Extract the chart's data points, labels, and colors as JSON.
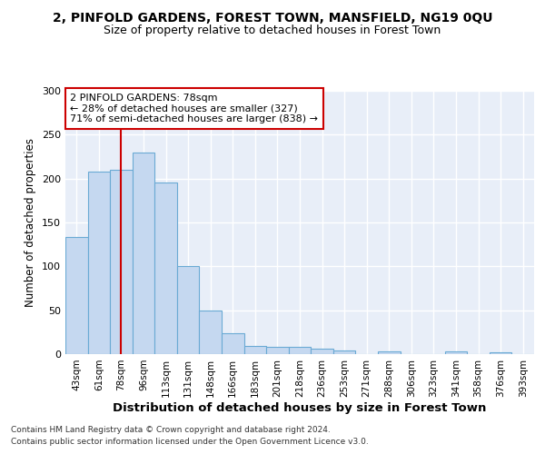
{
  "title1": "2, PINFOLD GARDENS, FOREST TOWN, MANSFIELD, NG19 0QU",
  "title2": "Size of property relative to detached houses in Forest Town",
  "xlabel": "Distribution of detached houses by size in Forest Town",
  "ylabel": "Number of detached properties",
  "categories": [
    "43sqm",
    "61sqm",
    "78sqm",
    "96sqm",
    "113sqm",
    "131sqm",
    "148sqm",
    "166sqm",
    "183sqm",
    "201sqm",
    "218sqm",
    "236sqm",
    "253sqm",
    "271sqm",
    "288sqm",
    "306sqm",
    "323sqm",
    "341sqm",
    "358sqm",
    "376sqm",
    "393sqm"
  ],
  "values": [
    133,
    208,
    210,
    230,
    196,
    100,
    50,
    24,
    9,
    8,
    8,
    6,
    4,
    0,
    3,
    0,
    0,
    3,
    0,
    2,
    0
  ],
  "bar_color": "#c5d8f0",
  "bar_edge_color": "#6aaad4",
  "highlight_index": 2,
  "highlight_line_color": "#cc0000",
  "annotation_text": "2 PINFOLD GARDENS: 78sqm\n← 28% of detached houses are smaller (327)\n71% of semi-detached houses are larger (838) →",
  "annotation_box_color": "#ffffff",
  "annotation_box_edge_color": "#cc0000",
  "ylim": [
    0,
    300
  ],
  "yticks": [
    0,
    50,
    100,
    150,
    200,
    250,
    300
  ],
  "footer1": "Contains HM Land Registry data © Crown copyright and database right 2024.",
  "footer2": "Contains public sector information licensed under the Open Government Licence v3.0.",
  "bg_color": "#ffffff",
  "plot_bg_color": "#e8eef8"
}
